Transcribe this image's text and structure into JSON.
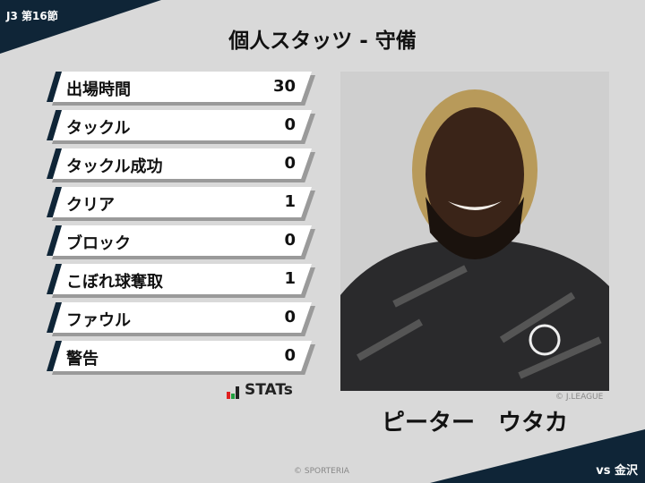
{
  "header": {
    "round": "J3 第16節",
    "title": "個人スタッツ - 守備"
  },
  "stats": [
    {
      "label": "出場時間",
      "value": "30"
    },
    {
      "label": "タックル",
      "value": "0"
    },
    {
      "label": "タックル成功",
      "value": "0"
    },
    {
      "label": "クリア",
      "value": "1"
    },
    {
      "label": "ブロック",
      "value": "0"
    },
    {
      "label": "こぼれ球奪取",
      "value": "1"
    },
    {
      "label": "ファウル",
      "value": "0"
    },
    {
      "label": "警告",
      "value": "0"
    }
  ],
  "stats_logo": "STATs",
  "player": {
    "name": "ピーター　ウタカ",
    "photo_credit": "© J.LEAGUE"
  },
  "opponent": "vs 金沢",
  "copyright": "© SPORTERIA",
  "colors": {
    "navy": "#0f2537",
    "background": "#d9d9d9"
  }
}
